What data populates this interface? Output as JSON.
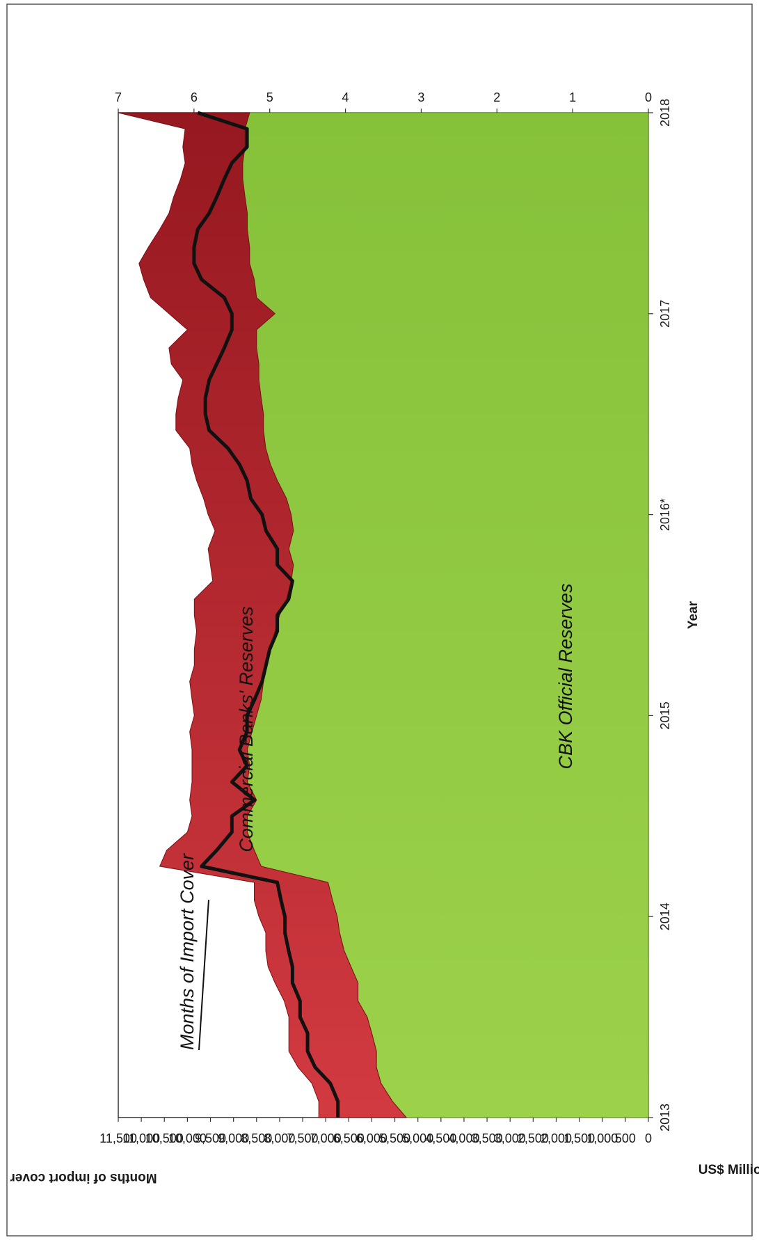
{
  "chart_data": {
    "type": "area",
    "orientation_note": "rotated",
    "xlabel": "Year",
    "ylabel_left": "US$ Million",
    "ylabel_right": "Months of import cover",
    "x_tick_labels": [
      "2013",
      "2014",
      "2015",
      "2016*",
      "2017",
      "2018"
    ],
    "y_left_ticks": [
      "0",
      "500",
      "1,000",
      "1,500",
      "2,000",
      "2,500",
      "3,000",
      "3,500",
      "4,000",
      "4,500",
      "5,000",
      "5,500",
      "6,000",
      "6,500",
      "7,000",
      "7,500",
      "8,000",
      "8,500",
      "9,000",
      "9,500",
      "10,000",
      "10,500",
      "11,000",
      "11,500"
    ],
    "y_left_lim": [
      0,
      11500
    ],
    "y_right_ticks": [
      "0",
      "1",
      "2",
      "3",
      "4",
      "5",
      "6",
      "7"
    ],
    "y_right_lim": [
      0,
      7
    ],
    "x": [
      2013.0,
      2013.08,
      2013.17,
      2013.25,
      2013.33,
      2013.42,
      2013.5,
      2013.58,
      2013.67,
      2013.75,
      2013.83,
      2013.92,
      2014.0,
      2014.08,
      2014.17,
      2014.25,
      2014.33,
      2014.42,
      2014.5,
      2014.58,
      2014.67,
      2014.75,
      2014.83,
      2014.92,
      2015.0,
      2015.08,
      2015.17,
      2015.25,
      2015.33,
      2015.42,
      2015.5,
      2015.58,
      2015.67,
      2015.75,
      2015.83,
      2015.92,
      2016.0,
      2016.08,
      2016.17,
      2016.25,
      2016.33,
      2016.42,
      2016.5,
      2016.58,
      2016.67,
      2016.75,
      2016.83,
      2016.92,
      2017.0,
      2017.08,
      2017.17,
      2017.25,
      2017.33,
      2017.42,
      2017.5,
      2017.58,
      2017.67,
      2017.75,
      2017.83,
      2017.92,
      2018.0
    ],
    "series": [
      {
        "name": "CBK Official Reserves",
        "color": "#8dc63f",
        "values": [
          5250,
          5550,
          5800,
          5900,
          5900,
          6000,
          6100,
          6300,
          6300,
          6450,
          6600,
          6700,
          6750,
          6850,
          6950,
          8400,
          8550,
          8700,
          8700,
          8500,
          8700,
          8650,
          8700,
          8600,
          8500,
          8400,
          8350,
          8300,
          8200,
          8100,
          8000,
          7850,
          7750,
          7700,
          7800,
          7700,
          7750,
          7850,
          8050,
          8200,
          8300,
          8350,
          8350,
          8400,
          8450,
          8450,
          8500,
          8500,
          8100,
          8500,
          8550,
          8650,
          8650,
          8700,
          8700,
          8750,
          8800,
          8800,
          8750,
          8750,
          8650
        ]
      },
      {
        "name": "Commercial Banks' Reserves",
        "color": "#b01e23",
        "values": [
          1900,
          1600,
          1500,
          1700,
          1900,
          1800,
          1700,
          1600,
          1800,
          1800,
          1700,
          1600,
          1700,
          1700,
          1600,
          2200,
          1900,
          1300,
          1200,
          1450,
          1200,
          1250,
          1200,
          1350,
          1350,
          1500,
          1600,
          1550,
          1650,
          1700,
          1850,
          2000,
          1700,
          1800,
          1750,
          1700,
          1800,
          1800,
          1750,
          1700,
          1650,
          1900,
          1900,
          1800,
          1650,
          1900,
          1900,
          1500,
          2300,
          2300,
          2400,
          2400,
          2200,
          1900,
          1700,
          1550,
          1350,
          1250,
          1350,
          1300,
          2850
        ]
      },
      {
        "name": "Months of Import Cover",
        "axis": "right",
        "color": "#111111",
        "values": [
          4.1,
          4.1,
          4.2,
          4.4,
          4.5,
          4.5,
          4.6,
          4.6,
          4.7,
          4.7,
          4.75,
          4.8,
          4.8,
          4.85,
          4.9,
          5.9,
          5.7,
          5.5,
          5.5,
          5.2,
          5.5,
          5.3,
          5.4,
          5.3,
          5.3,
          5.2,
          5.1,
          5.05,
          5.0,
          4.9,
          4.9,
          4.75,
          4.7,
          4.9,
          4.9,
          5.05,
          5.1,
          5.25,
          5.3,
          5.4,
          5.55,
          5.8,
          5.85,
          5.85,
          5.8,
          5.7,
          5.6,
          5.5,
          5.5,
          5.6,
          5.9,
          6.0,
          6.0,
          5.95,
          5.8,
          5.7,
          5.6,
          5.5,
          5.3,
          5.3,
          5.95
        ]
      }
    ],
    "annotations": [
      "Months of Import Cover",
      "Commercial Banks' Reserves",
      "CBK Official Reserves"
    ],
    "grid": false,
    "legend": "none"
  }
}
